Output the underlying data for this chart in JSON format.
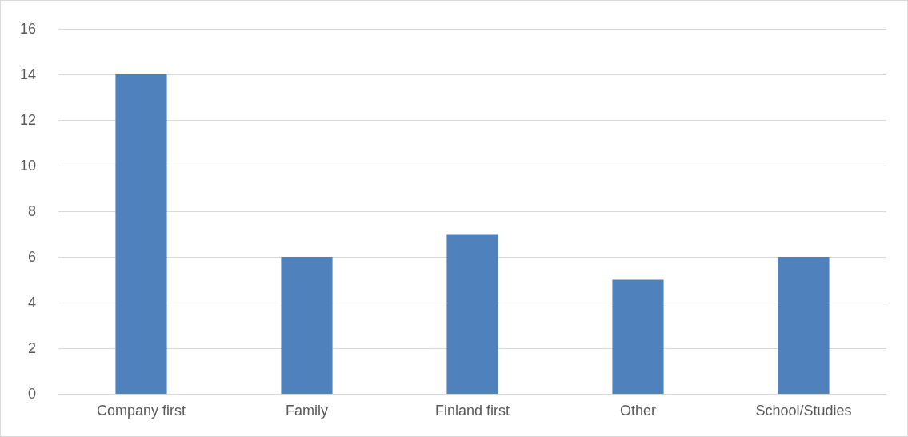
{
  "chart_data": {
    "type": "bar",
    "categories": [
      "Company first",
      "Family",
      "Finland first",
      "Other",
      "School/Studies"
    ],
    "values": [
      14,
      6,
      7,
      5,
      6
    ],
    "color": "#4f81bd",
    "ylim": [
      0,
      16
    ],
    "yticks": [
      0,
      2,
      4,
      6,
      8,
      10,
      12,
      14,
      16
    ],
    "grid": "y"
  }
}
